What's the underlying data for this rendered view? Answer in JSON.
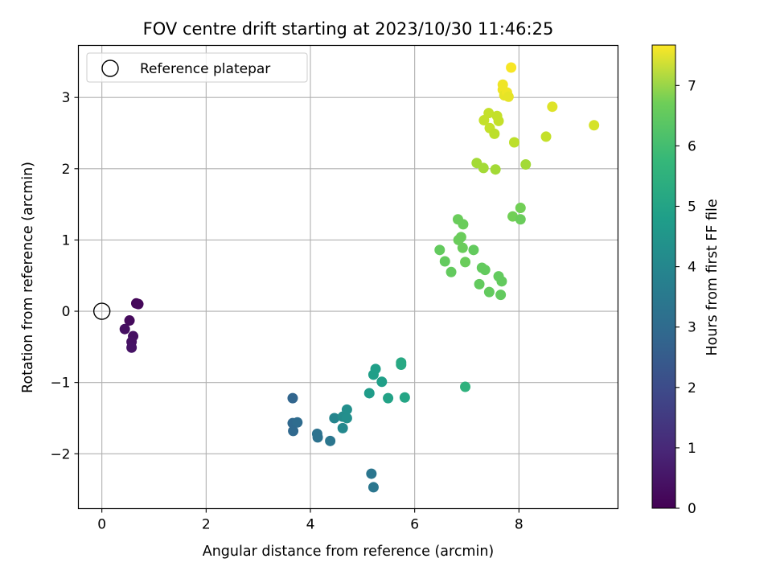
{
  "chart_data": {
    "type": "scatter",
    "title": "FOV centre drift starting at 2023/10/30 11:46:25",
    "xlabel": "Angular distance from reference (arcmin)",
    "ylabel": "Rotation from reference (arcmin)",
    "xlim": [
      -0.45,
      9.9
    ],
    "ylim": [
      -2.77,
      3.73
    ],
    "xticks": [
      0,
      2,
      4,
      6,
      8
    ],
    "yticks": [
      -2,
      -1,
      0,
      1,
      2,
      3
    ],
    "xtick_labels": [
      "0",
      "2",
      "4",
      "6",
      "8"
    ],
    "ytick_labels": [
      "−2",
      "−1",
      "0",
      "1",
      "2",
      "3"
    ],
    "grid": true,
    "legend": {
      "position": "top-left",
      "label": "Reference platepar"
    },
    "reference_point": {
      "x": 0,
      "y": 0
    },
    "colorbar": {
      "label": "Hours from first FF file",
      "range": [
        0,
        7.67
      ],
      "ticks": [
        0,
        1,
        2,
        3,
        4,
        5,
        6,
        7
      ],
      "tick_labels": [
        "0",
        "1",
        "2",
        "3",
        "4",
        "5",
        "6",
        "7"
      ],
      "colormap": "viridis"
    },
    "points": [
      {
        "x": 0.53,
        "y": -0.13,
        "c": 0.2
      },
      {
        "x": 0.44,
        "y": -0.25,
        "c": 0.3
      },
      {
        "x": 0.66,
        "y": 0.11,
        "c": 0.1
      },
      {
        "x": 0.7,
        "y": 0.1,
        "c": 0.15
      },
      {
        "x": 0.6,
        "y": -0.35,
        "c": 0.3
      },
      {
        "x": 0.57,
        "y": -0.43,
        "c": 0.35
      },
      {
        "x": 0.57,
        "y": -0.51,
        "c": 0.4
      },
      {
        "x": 3.66,
        "y": -1.22,
        "c": 2.5
      },
      {
        "x": 3.66,
        "y": -1.57,
        "c": 2.6
      },
      {
        "x": 3.75,
        "y": -1.56,
        "c": 2.7
      },
      {
        "x": 3.67,
        "y": -1.68,
        "c": 2.6
      },
      {
        "x": 4.13,
        "y": -1.72,
        "c": 2.9
      },
      {
        "x": 4.14,
        "y": -1.77,
        "c": 2.9
      },
      {
        "x": 4.38,
        "y": -1.82,
        "c": 3.0
      },
      {
        "x": 4.46,
        "y": -1.5,
        "c": 3.5
      },
      {
        "x": 4.62,
        "y": -1.48,
        "c": 3.7
      },
      {
        "x": 4.7,
        "y": -1.38,
        "c": 3.8
      },
      {
        "x": 4.7,
        "y": -1.5,
        "c": 3.8
      },
      {
        "x": 4.62,
        "y": -1.64,
        "c": 3.6
      },
      {
        "x": 5.17,
        "y": -2.28,
        "c": 3.0
      },
      {
        "x": 5.21,
        "y": -2.47,
        "c": 3.0
      },
      {
        "x": 5.13,
        "y": -1.15,
        "c": 4.2
      },
      {
        "x": 5.21,
        "y": -0.89,
        "c": 4.3
      },
      {
        "x": 5.25,
        "y": -0.81,
        "c": 4.3
      },
      {
        "x": 5.37,
        "y": -0.99,
        "c": 4.3
      },
      {
        "x": 5.49,
        "y": -1.22,
        "c": 4.4
      },
      {
        "x": 5.74,
        "y": -0.72,
        "c": 4.6
      },
      {
        "x": 5.74,
        "y": -0.75,
        "c": 4.6
      },
      {
        "x": 5.81,
        "y": -1.21,
        "c": 4.5
      },
      {
        "x": 6.97,
        "y": -1.06,
        "c": 4.9
      },
      {
        "x": 6.48,
        "y": 0.86,
        "c": 5.8
      },
      {
        "x": 6.58,
        "y": 0.7,
        "c": 5.8
      },
      {
        "x": 6.7,
        "y": 0.55,
        "c": 5.8
      },
      {
        "x": 6.83,
        "y": 1.29,
        "c": 5.9
      },
      {
        "x": 6.93,
        "y": 1.22,
        "c": 5.9
      },
      {
        "x": 6.84,
        "y": 1.0,
        "c": 5.9
      },
      {
        "x": 6.89,
        "y": 1.04,
        "c": 5.9
      },
      {
        "x": 6.92,
        "y": 0.89,
        "c": 5.9
      },
      {
        "x": 6.97,
        "y": 0.69,
        "c": 5.9
      },
      {
        "x": 7.13,
        "y": 0.86,
        "c": 5.8
      },
      {
        "x": 7.24,
        "y": 0.38,
        "c": 5.8
      },
      {
        "x": 7.29,
        "y": 0.61,
        "c": 5.8
      },
      {
        "x": 7.35,
        "y": 0.58,
        "c": 5.8
      },
      {
        "x": 7.43,
        "y": 0.27,
        "c": 5.8
      },
      {
        "x": 7.61,
        "y": 0.49,
        "c": 5.8
      },
      {
        "x": 7.67,
        "y": 0.42,
        "c": 5.8
      },
      {
        "x": 7.65,
        "y": 0.23,
        "c": 5.8
      },
      {
        "x": 7.88,
        "y": 1.33,
        "c": 6.0
      },
      {
        "x": 8.03,
        "y": 1.45,
        "c": 6.0
      },
      {
        "x": 8.03,
        "y": 1.29,
        "c": 5.9
      },
      {
        "x": 7.19,
        "y": 2.08,
        "c": 6.6
      },
      {
        "x": 7.32,
        "y": 2.01,
        "c": 6.6
      },
      {
        "x": 7.55,
        "y": 1.99,
        "c": 6.6
      },
      {
        "x": 8.13,
        "y": 2.06,
        "c": 6.6
      },
      {
        "x": 7.33,
        "y": 2.68,
        "c": 7.0
      },
      {
        "x": 7.42,
        "y": 2.78,
        "c": 7.0
      },
      {
        "x": 7.44,
        "y": 2.57,
        "c": 7.0
      },
      {
        "x": 7.53,
        "y": 2.49,
        "c": 6.9
      },
      {
        "x": 7.58,
        "y": 2.74,
        "c": 7.0
      },
      {
        "x": 7.61,
        "y": 2.67,
        "c": 7.0
      },
      {
        "x": 7.69,
        "y": 3.18,
        "c": 7.5
      },
      {
        "x": 7.69,
        "y": 3.11,
        "c": 7.5
      },
      {
        "x": 7.72,
        "y": 3.03,
        "c": 7.4
      },
      {
        "x": 7.77,
        "y": 3.07,
        "c": 7.5
      },
      {
        "x": 7.8,
        "y": 3.01,
        "c": 7.4
      },
      {
        "x": 7.85,
        "y": 3.42,
        "c": 7.6
      },
      {
        "x": 7.91,
        "y": 2.37,
        "c": 6.9
      },
      {
        "x": 8.52,
        "y": 2.45,
        "c": 7.0
      },
      {
        "x": 8.64,
        "y": 2.87,
        "c": 7.3
      },
      {
        "x": 9.44,
        "y": 2.61,
        "c": 7.2
      }
    ]
  }
}
